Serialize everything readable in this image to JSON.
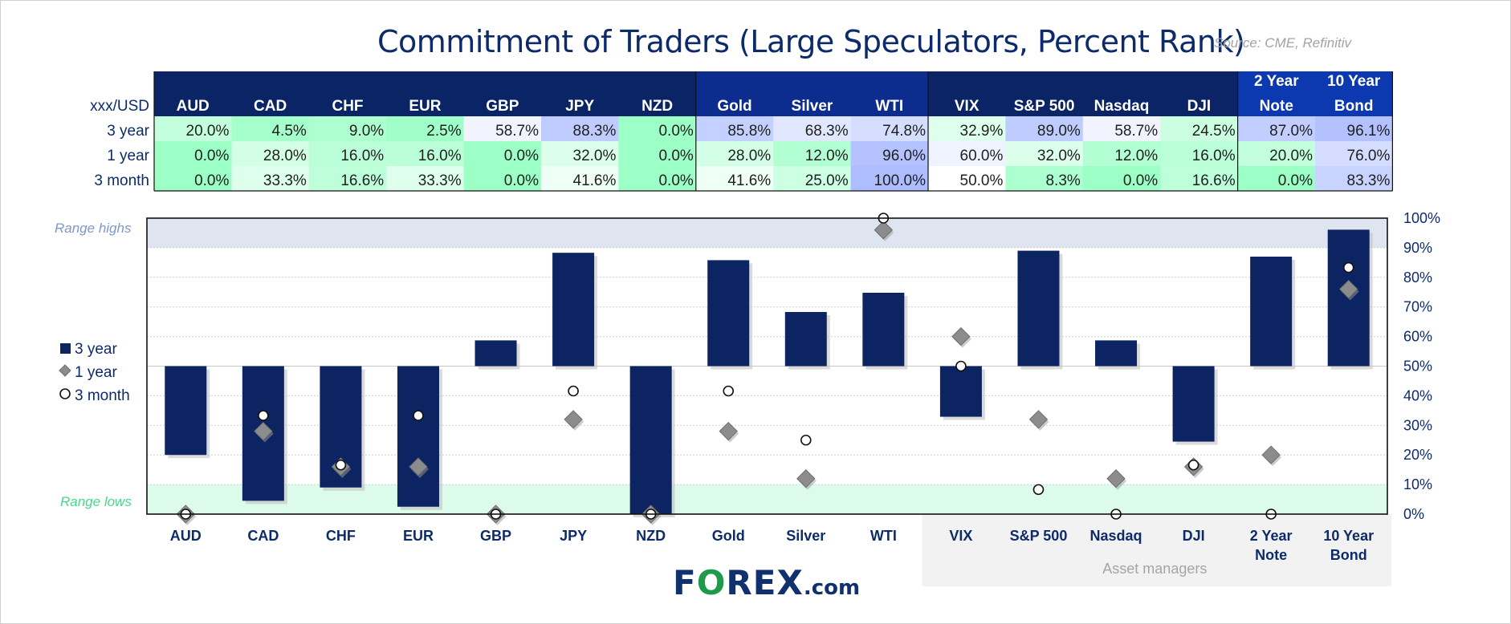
{
  "title": "Commitment of Traders (Large Speculators, Percent Rank)",
  "source": "Source: CME, Refinitiv",
  "table": {
    "corner_label": "xxx/USD",
    "row_labels": [
      "3 year",
      "1 year",
      "3 month"
    ]
  },
  "chart_data": {
    "type": "bar",
    "categories": [
      "AUD",
      "CAD",
      "CHF",
      "EUR",
      "GBP",
      "JPY",
      "NZD",
      "Gold",
      "Silver",
      "WTI",
      "VIX",
      "S&P 500",
      "Nasdaq",
      "DJI",
      "2 Year Note",
      "10 Year Bond"
    ],
    "category_lines": [
      [
        "AUD"
      ],
      [
        "CAD"
      ],
      [
        "CHF"
      ],
      [
        "EUR"
      ],
      [
        "GBP"
      ],
      [
        "JPY"
      ],
      [
        "NZD"
      ],
      [
        "Gold"
      ],
      [
        "Silver"
      ],
      [
        "WTI"
      ],
      [
        "VIX"
      ],
      [
        "S&P 500"
      ],
      [
        "Nasdaq"
      ],
      [
        "DJI"
      ],
      [
        "2 Year",
        "Note"
      ],
      [
        "10 Year",
        "Bond"
      ]
    ],
    "baseline": 50,
    "series": [
      {
        "name": "3 year",
        "marker": "bar",
        "values": [
          20.0,
          4.5,
          9.0,
          2.5,
          58.7,
          88.3,
          0.0,
          85.8,
          68.3,
          74.8,
          32.9,
          89.0,
          58.7,
          24.5,
          87.0,
          96.1
        ]
      },
      {
        "name": "1 year",
        "marker": "diamond",
        "values": [
          0.0,
          28.0,
          16.0,
          16.0,
          0.0,
          32.0,
          0.0,
          28.0,
          12.0,
          96.0,
          60.0,
          32.0,
          12.0,
          16.0,
          20.0,
          76.0
        ]
      },
      {
        "name": "3 month",
        "marker": "circle",
        "values": [
          0.0,
          33.3,
          16.6,
          33.3,
          0.0,
          41.6,
          0.0,
          41.6,
          25.0,
          100.0,
          50.0,
          8.3,
          0.0,
          16.6,
          0.0,
          83.3
        ]
      }
    ],
    "ylim": [
      0,
      100
    ],
    "y_ticks": [
      "0%",
      "10%",
      "20%",
      "30%",
      "40%",
      "50%",
      "60%",
      "70%",
      "80%",
      "90%",
      "100%"
    ],
    "range_high_label": "Range highs",
    "range_low_label": "Range lows",
    "range_high_min": 90,
    "range_low_max": 10,
    "group_label": "Asset managers",
    "legend": [
      "3 year",
      "1 year",
      "3 month"
    ]
  },
  "colors": {
    "bar": "#0c2461",
    "header_dark": "#0b2466",
    "header_mid": "#0d2d8e",
    "header_light": "#0c38b0",
    "range_high_band": "#dfe5f0",
    "range_low_band": "#dcfbea",
    "range_high_text": "#7f97c8",
    "range_low_text": "#48d889",
    "marker_diamond": "#8c8c8c",
    "group_bg": "#f2f2f2"
  },
  "logo": {
    "brand_pre": "F",
    "brand_o": "O",
    "brand_post": "REX",
    "suffix": ".com"
  }
}
